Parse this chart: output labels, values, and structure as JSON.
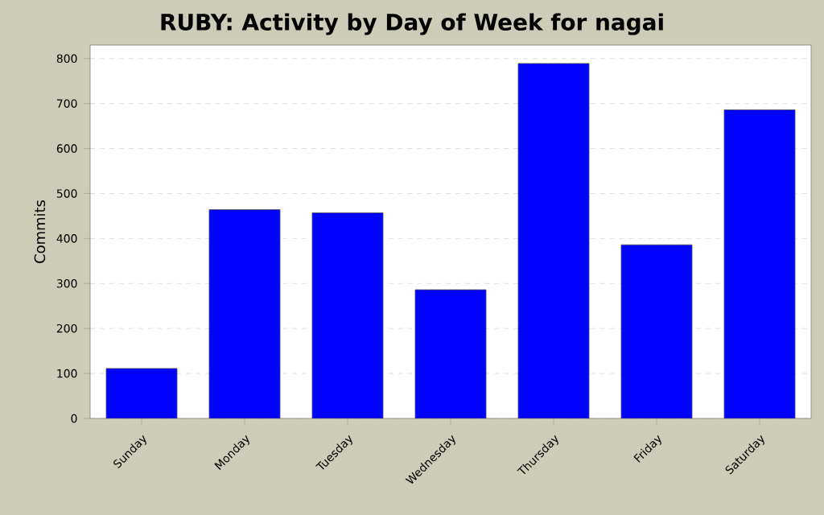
{
  "chart_data": {
    "type": "bar",
    "title": "RUBY: Activity by Day of Week for nagai",
    "ylabel": "Commits",
    "categories": [
      "Sunday",
      "Monday",
      "Tuesday",
      "Wednesday",
      "Thursday",
      "Friday",
      "Saturday"
    ],
    "values": [
      111,
      464,
      457,
      286,
      789,
      386,
      686
    ],
    "color": "#0000ff",
    "ylim": [
      0,
      830
    ],
    "yticks": [
      0,
      100,
      200,
      300,
      400,
      500,
      600,
      700,
      800
    ],
    "grid": "y"
  }
}
